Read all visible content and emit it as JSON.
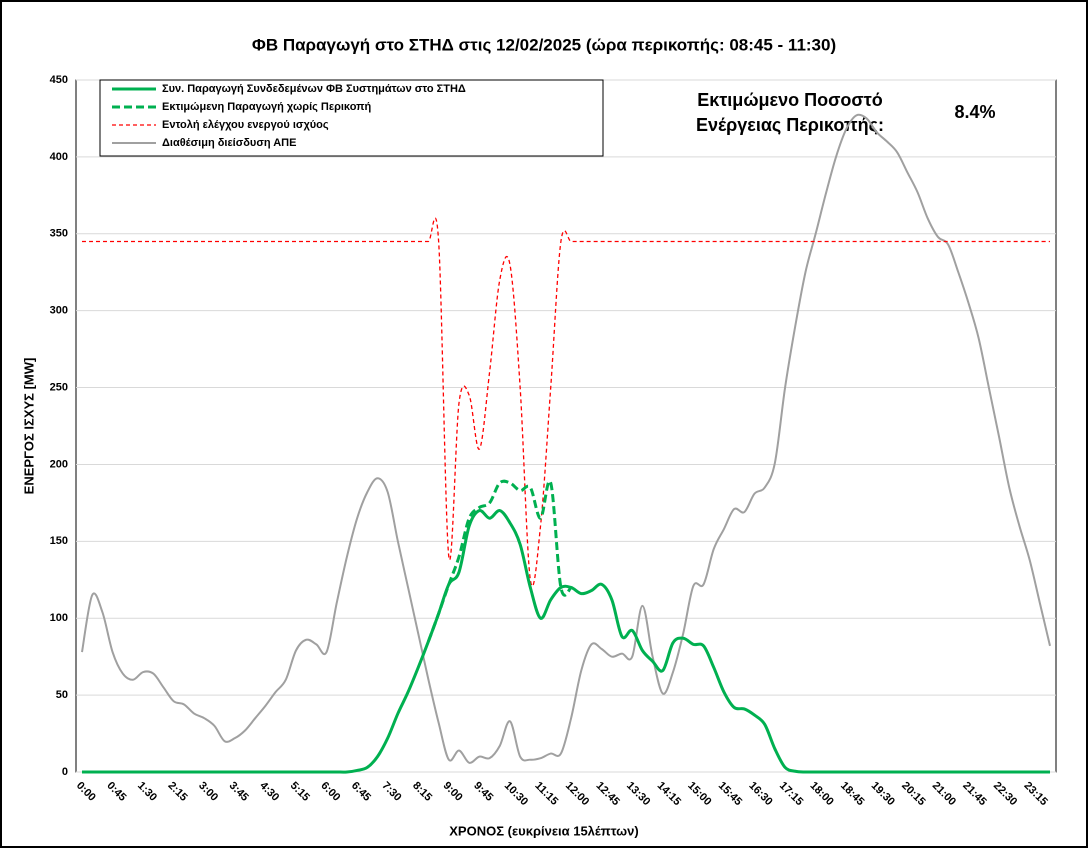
{
  "chart_data": {
    "type": "line",
    "title": "ΦΒ Παραγωγή στο ΣΤΗΔ στις 12/02/2025 (ώρα περικοπής: 08:45 - 11:30)",
    "xlabel": "ΧΡΟΝΟΣ (ευκρίνεια 15λέπτων)",
    "ylabel": "ΕΝΕΡΓΟΣ ΙΣΧΥΣ [MW]",
    "annotations": [
      "Εκτιμώμενο Ποσοστό",
      "Ενέργειας Περικοπής:",
      "8.4%"
    ],
    "categories": [
      "0:00",
      null,
      null,
      "0:45",
      null,
      null,
      "1:30",
      null,
      null,
      "2:15",
      null,
      null,
      "3:00",
      null,
      null,
      "3:45",
      null,
      null,
      "4:30",
      null,
      null,
      "5:15",
      null,
      null,
      "6:00",
      null,
      null,
      "6:45",
      null,
      null,
      "7:30",
      null,
      null,
      "8:15",
      null,
      null,
      "9:00",
      null,
      null,
      "9:45",
      null,
      null,
      "10:30",
      null,
      null,
      "11:15",
      null,
      null,
      "12:00",
      null,
      null,
      "12:45",
      null,
      null,
      "13:30",
      null,
      null,
      "14:15",
      null,
      null,
      "15:00",
      null,
      null,
      "15:45",
      null,
      null,
      "16:30",
      null,
      null,
      "17:15",
      null,
      null,
      "18:00",
      null,
      null,
      "18:45",
      null,
      null,
      "19:30",
      null,
      null,
      "20:15",
      null,
      null,
      "21:00",
      null,
      null,
      "21:45",
      null,
      null,
      "22:30",
      null,
      null,
      "23:15",
      null,
      null
    ],
    "series": [
      {
        "name": "Συν. Παραγωγή Συνδεδεμένων ΦΒ Συστημάτων στο ΣΤΗΔ",
        "color": "#00b050",
        "width": 3,
        "dashed": false,
        "values": [
          0,
          0,
          0,
          0,
          0,
          0,
          0,
          0,
          0,
          0,
          0,
          0,
          0,
          0,
          0,
          0,
          0,
          0,
          0,
          0,
          0,
          0,
          0,
          0,
          0,
          0,
          0,
          1,
          3,
          10,
          22,
          38,
          52,
          68,
          85,
          103,
          122,
          130,
          160,
          170,
          165,
          170,
          162,
          148,
          120,
          100,
          112,
          120,
          120,
          116,
          118,
          122,
          112,
          88,
          92,
          79,
          72,
          66,
          84,
          87,
          83,
          82,
          68,
          52,
          42,
          41,
          37,
          31,
          15,
          3,
          0.5,
          0,
          0,
          0,
          0,
          0,
          0,
          0,
          0,
          0,
          0,
          0,
          0,
          0,
          0,
          0,
          0,
          0,
          0,
          0,
          0,
          0,
          0,
          0,
          0,
          0
        ]
      },
      {
        "name": "Εκτιμώμενη Παραγωγή χωρίς Περικοπή",
        "color": "#00b050",
        "width": 3,
        "dashed": true,
        "values": [
          null,
          null,
          null,
          null,
          null,
          null,
          null,
          null,
          null,
          null,
          null,
          null,
          null,
          null,
          null,
          null,
          null,
          null,
          null,
          null,
          null,
          null,
          null,
          null,
          null,
          null,
          null,
          null,
          null,
          null,
          null,
          null,
          null,
          null,
          85,
          103,
          122,
          140,
          165,
          172,
          175,
          188,
          188,
          183,
          185,
          165,
          188,
          120,
          120,
          null,
          null,
          null,
          null,
          null,
          null,
          null,
          null,
          null,
          null,
          null,
          null,
          null,
          null,
          null,
          null,
          null,
          null,
          null,
          null,
          null,
          null,
          null,
          null,
          null,
          null,
          null,
          null,
          null,
          null,
          null,
          null,
          null,
          null,
          null,
          null,
          null,
          null,
          null,
          null,
          null,
          null,
          null,
          null,
          null,
          null,
          null
        ]
      },
      {
        "name": "Εντολή ελέγχου ενεργού ισχύος",
        "color": "#ff0000",
        "width": 1.3,
        "dashed": true,
        "values": [
          345,
          345,
          345,
          345,
          345,
          345,
          345,
          345,
          345,
          345,
          345,
          345,
          345,
          345,
          345,
          345,
          345,
          345,
          345,
          345,
          345,
          345,
          345,
          345,
          345,
          345,
          345,
          345,
          345,
          345,
          345,
          345,
          345,
          345,
          345,
          345,
          140,
          240,
          245,
          210,
          260,
          320,
          330,
          250,
          125,
          160,
          250,
          345,
          345,
          345,
          345,
          345,
          345,
          345,
          345,
          345,
          345,
          345,
          345,
          345,
          345,
          345,
          345,
          345,
          345,
          345,
          345,
          345,
          345,
          345,
          345,
          345,
          345,
          345,
          345,
          345,
          345,
          345,
          345,
          345,
          345,
          345,
          345,
          345,
          345,
          345,
          345,
          345,
          345,
          345,
          345,
          345,
          345,
          345,
          345,
          345
        ]
      },
      {
        "name": "Διαθέσιμη διείσδυση ΑΠΕ",
        "color": "#a0a0a0",
        "width": 2,
        "dashed": false,
        "values": [
          78,
          115,
          104,
          78,
          64,
          60,
          65,
          64,
          55,
          46,
          44,
          38,
          35,
          30,
          20,
          22,
          27,
          35,
          43,
          52,
          60,
          79,
          86,
          83,
          78,
          110,
          140,
          165,
          182,
          191,
          182,
          150,
          120,
          90,
          60,
          32,
          8,
          14,
          6,
          10,
          9,
          17,
          33,
          10,
          8,
          9,
          12,
          12,
          35,
          66,
          83,
          80,
          75,
          77,
          75,
          108,
          75,
          51,
          65,
          90,
          121,
          122,
          145,
          158,
          171,
          169,
          181,
          185,
          201,
          250,
          290,
          325,
          350,
          376,
          400,
          418,
          427,
          425,
          416,
          410,
          403,
          390,
          377,
          360,
          348,
          343,
          325,
          305,
          282,
          250,
          218,
          185,
          160,
          138,
          110,
          82
        ]
      }
    ],
    "ylim": [
      0,
      450
    ],
    "yticks": [
      0,
      50,
      100,
      150,
      200,
      250,
      300,
      350,
      400,
      450
    ],
    "grid": true
  }
}
